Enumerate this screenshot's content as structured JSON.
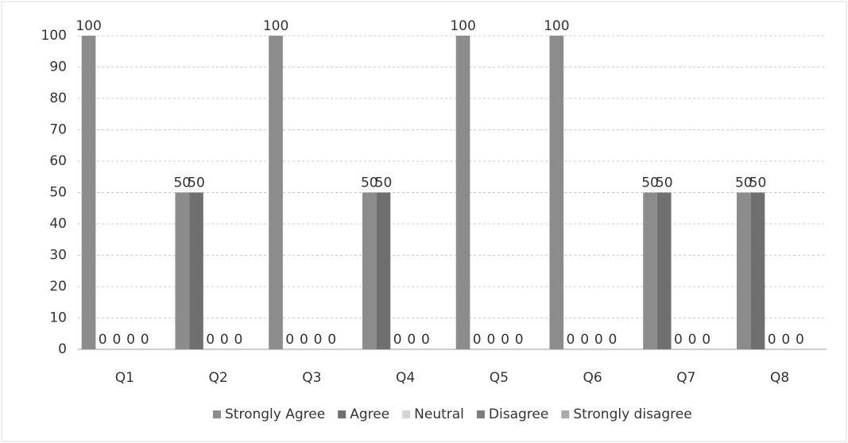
{
  "chart_data": {
    "type": "bar",
    "categories": [
      "Q1",
      "Q2",
      "Q3",
      "Q4",
      "Q5",
      "Q6",
      "Q7",
      "Q8"
    ],
    "series": [
      {
        "name": "Strongly Agree",
        "color": "#8c8c8c",
        "values": [
          100,
          50,
          100,
          50,
          100,
          100,
          50,
          50
        ]
      },
      {
        "name": "Agree",
        "color": "#6f6f6f",
        "values": [
          0,
          50,
          0,
          50,
          0,
          0,
          50,
          50
        ]
      },
      {
        "name": "Neutral",
        "color": "#d4d4d4",
        "values": [
          0,
          0,
          0,
          0,
          0,
          0,
          0,
          0
        ]
      },
      {
        "name": "Disagree",
        "color": "#7c7c7c",
        "values": [
          0,
          0,
          0,
          0,
          0,
          0,
          0,
          0
        ]
      },
      {
        "name": "Strongly disagree",
        "color": "#ababab",
        "values": [
          0,
          0,
          0,
          0,
          0,
          0,
          0,
          0
        ]
      }
    ],
    "ylim": [
      0,
      100
    ],
    "yticks": [
      0,
      10,
      20,
      30,
      40,
      50,
      60,
      70,
      80,
      90,
      100
    ],
    "grid": true,
    "legend": "bottom"
  }
}
